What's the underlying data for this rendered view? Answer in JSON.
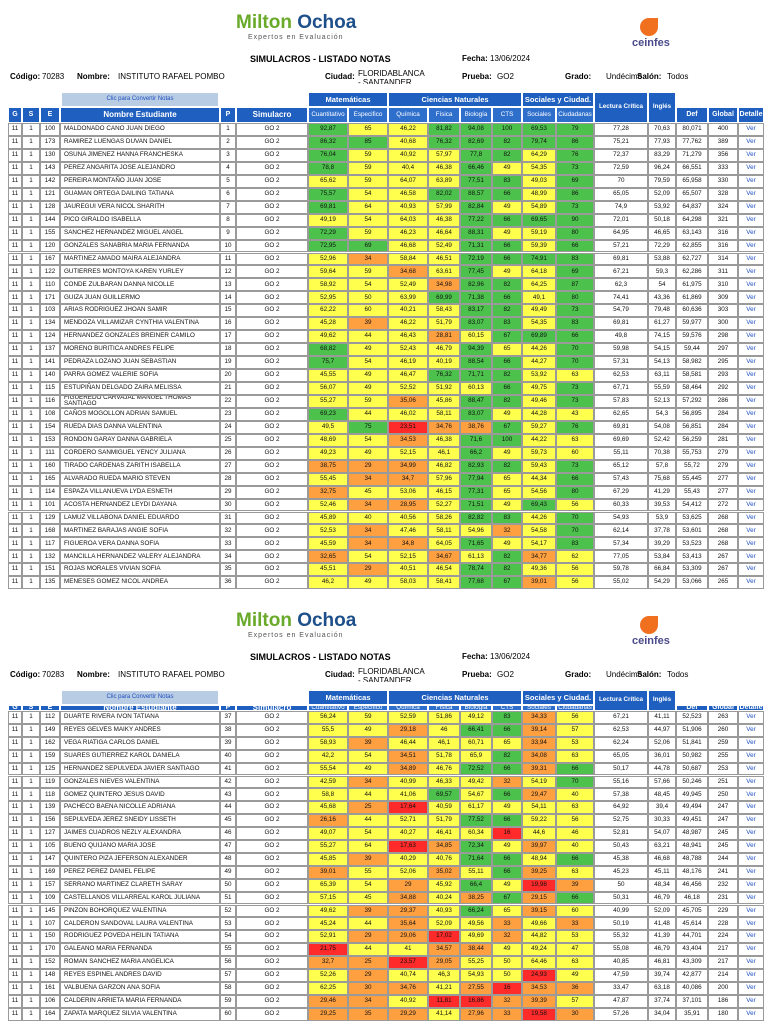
{
  "logo_left": "Milton",
  "logo_right": "Ochoa",
  "logo_tagline": "Expertos en Evaluación",
  "partner_logo": "ceinfes",
  "title": "SIMULACROS - LISTADO NOTAS",
  "info": {
    "fecha_label": "Fecha:",
    "fecha": "13/06/2024",
    "codigo_label": "Código:",
    "codigo": "70283",
    "nombre_label": "Nombre:",
    "nombre": "INSTITUTO RAFAEL POMBO",
    "ciudad_label": "Ciudad:",
    "ciudad": "FLORIDABLANCA - SANTANDER",
    "prueba_label": "Prueba:",
    "prueba": "GO2",
    "grado_label": "Grado:",
    "grado": "Undécimo",
    "salon_label": "Salón:",
    "salon": "Todos"
  },
  "convert_button": "Clic para Convertir Notas",
  "groups": [
    "Matemáticas",
    "Ciencias Naturales",
    "Sociales y Ciudad."
  ],
  "columns": [
    "G",
    "S",
    "E",
    "Nombre Estudiante",
    "P",
    "Simulacro",
    "Cuantitativo",
    "Especifico",
    "Química",
    "Física",
    "Biología",
    "CTS",
    "Sociales",
    "Ciudadanas",
    "Lectura Crítica",
    "Inglés",
    "Def",
    "Global",
    "Detalle"
  ],
  "detail_link": "Ver",
  "rows": [
    [
      "11",
      "1",
      "100",
      "MALDONADO CANO JUAN DIEGO",
      "1",
      "GO 2",
      "92,87",
      "65",
      "46,22",
      "81,82",
      "94,08",
      "100",
      "69,53",
      "79",
      "77,28",
      "70,63",
      "80,071",
      "400"
    ],
    [
      "11",
      "1",
      "173",
      "RAMIREZ LUENGAS DUVAN DANIEL",
      "2",
      "GO 2",
      "86,32",
      "85",
      "40,68",
      "76,32",
      "82,69",
      "82",
      "79,74",
      "86",
      "75,21",
      "77,93",
      "77,762",
      "389"
    ],
    [
      "11",
      "1",
      "130",
      "OSUNA JIMENEZ HANNA FRANCHESKA",
      "3",
      "GO 2",
      "76,04",
      "59",
      "40,92",
      "57,97",
      "77,8",
      "82",
      "64,29",
      "76",
      "72,37",
      "83,29",
      "71,279",
      "356"
    ],
    [
      "11",
      "1",
      "143",
      "PEREZ ANGARITA JOSE ALEJANDRO",
      "4",
      "GO 2",
      "78,8",
      "59",
      "40,4",
      "46,38",
      "66,46",
      "49",
      "54,35",
      "73",
      "72,59",
      "96,24",
      "66,551",
      "333"
    ],
    [
      "11",
      "1",
      "142",
      "PEREIRA MONTAÑO JUAN JOSE",
      "5",
      "GO 2",
      "65,62",
      "59",
      "64,07",
      "63,89",
      "77,51",
      "83",
      "49,03",
      "69",
      "70",
      "79,59",
      "65,958",
      "330"
    ],
    [
      "11",
      "1",
      "121",
      "GUAMAN ORTEGA DAILING TATIANA",
      "6",
      "GO 2",
      "75,57",
      "54",
      "46,58",
      "82,02",
      "88,57",
      "66",
      "48,99",
      "86",
      "65,05",
      "52,09",
      "65,507",
      "328"
    ],
    [
      "11",
      "1",
      "128",
      "JAUREGUI VERA NICOL SHARITH",
      "7",
      "GO 2",
      "69,81",
      "64",
      "40,93",
      "57,99",
      "82,84",
      "49",
      "54,89",
      "73",
      "74,9",
      "53,92",
      "64,837",
      "324"
    ],
    [
      "11",
      "1",
      "144",
      "PICO GIRALDO ISABELLA",
      "8",
      "GO 2",
      "49,19",
      "54",
      "64,03",
      "46,38",
      "77,22",
      "66",
      "69,65",
      "90",
      "72,01",
      "50,18",
      "64,298",
      "321"
    ],
    [
      "11",
      "1",
      "155",
      "SANCHEZ HERNANDEZ MIGUEL ANGEL",
      "9",
      "GO 2",
      "72,29",
      "59",
      "46,23",
      "46,64",
      "88,31",
      "49",
      "59,19",
      "80",
      "64,95",
      "46,65",
      "63,143",
      "316"
    ],
    [
      "11",
      "1",
      "120",
      "GONZALES SANABRIA MARIA FERNANDA",
      "10",
      "GO 2",
      "72,95",
      "69",
      "46,68",
      "52,49",
      "71,31",
      "66",
      "59,39",
      "66",
      "57,21",
      "72,29",
      "62,855",
      "316"
    ],
    [
      "11",
      "1",
      "167",
      "MARTINEZ AMADO MAIRA ALEJANDRA",
      "11",
      "GO 2",
      "52,96",
      "34",
      "58,84",
      "46,51",
      "72,19",
      "66",
      "74,91",
      "83",
      "69,81",
      "53,88",
      "62,727",
      "314"
    ],
    [
      "11",
      "1",
      "122",
      "GUTIERRES MONTOYA KAREN YURLEY",
      "12",
      "GO 2",
      "59,64",
      "59",
      "34,68",
      "63,61",
      "77,45",
      "49",
      "64,18",
      "69",
      "67,21",
      "59,3",
      "62,286",
      "311"
    ],
    [
      "11",
      "1",
      "110",
      "CONDE ZULBARAN DANNA NICOLLE",
      "13",
      "GO 2",
      "58,92",
      "54",
      "52,49",
      "34,98",
      "82,96",
      "82",
      "64,25",
      "87",
      "62,3",
      "54",
      "61,975",
      "310"
    ],
    [
      "11",
      "1",
      "171",
      "GUIZA JUAN GUILLERMO",
      "14",
      "GO 2",
      "52,95",
      "50",
      "63,99",
      "69,99",
      "71,38",
      "66",
      "49,1",
      "80",
      "74,41",
      "43,36",
      "61,869",
      "309"
    ],
    [
      "11",
      "1",
      "103",
      "ARIAS RODRIGUEZ JHOAN SAMIR",
      "15",
      "GO 2",
      "62,22",
      "60",
      "40,21",
      "58,43",
      "83,17",
      "82",
      "49,49",
      "73",
      "54,79",
      "79,48",
      "60,636",
      "303"
    ],
    [
      "11",
      "1",
      "134",
      "MENDOZA VILLAMIZAR CYNTHIA VALENTINA",
      "16",
      "GO 2",
      "45,28",
      "39",
      "46,22",
      "51,79",
      "83,07",
      "83",
      "54,35",
      "83",
      "69,81",
      "61,27",
      "59,977",
      "300"
    ],
    [
      "11",
      "1",
      "124",
      "HERNANDEZ GONZALES BREINER CAMILO",
      "17",
      "GO 2",
      "49,62",
      "44",
      "46,43",
      "28,81",
      "60,15",
      "67",
      "69,89",
      "66",
      "49,8",
      "74,15",
      "59,576",
      "298"
    ],
    [
      "11",
      "1",
      "137",
      "MORENO BURITICA ANDRES FELIPE",
      "18",
      "GO 2",
      "68,82",
      "49",
      "52,43",
      "46,79",
      "94,39",
      "65",
      "44,26",
      "70",
      "59,98",
      "54,15",
      "59,44",
      "297"
    ],
    [
      "11",
      "1",
      "141",
      "PEDRAZA LOZANO JUAN SEBASTIAN",
      "19",
      "GO 2",
      "75,7",
      "54",
      "46,19",
      "40,19",
      "88,54",
      "66",
      "44,27",
      "70",
      "57,31",
      "54,13",
      "58,982",
      "295"
    ],
    [
      "11",
      "1",
      "140",
      "PARRA GOMEZ VALERIE SOFIA",
      "20",
      "GO 2",
      "45,55",
      "49",
      "46,47",
      "76,32",
      "71,71",
      "82",
      "53,92",
      "63",
      "62,53",
      "63,11",
      "58,581",
      "293"
    ],
    [
      "11",
      "1",
      "115",
      "ESTUPIÑAN DELGADO ZAIRA MELISSA",
      "21",
      "GO 2",
      "56,07",
      "49",
      "52,52",
      "51,92",
      "60,13",
      "66",
      "49,75",
      "73",
      "67,71",
      "55,59",
      "58,464",
      "292"
    ],
    [
      "11",
      "1",
      "116",
      "FIGUEREDO CARVAJAL MANUEL THOMAS SANTIAGO",
      "22",
      "GO 2",
      "55,27",
      "59",
      "35,06",
      "45,86",
      "88,47",
      "82",
      "49,46",
      "73",
      "57,83",
      "52,13",
      "57,292",
      "286"
    ],
    [
      "11",
      "1",
      "108",
      "CAÑOS MOGOLLON ADRIAN SAMUEL",
      "23",
      "GO 2",
      "69,23",
      "44",
      "46,02",
      "58,11",
      "83,07",
      "49",
      "44,28",
      "43",
      "62,65",
      "54,3",
      "56,895",
      "284"
    ],
    [
      "11",
      "1",
      "154",
      "RUEDA DIAS DANNA VALENTINA",
      "24",
      "GO 2",
      "49,5",
      "75",
      "23,51",
      "34,76",
      "38,76",
      "67",
      "59,27",
      "76",
      "69,81",
      "54,08",
      "56,851",
      "284"
    ],
    [
      "11",
      "1",
      "153",
      "RONDON GARAY DANNA GABRIELA",
      "25",
      "GO 2",
      "48,69",
      "54",
      "34,53",
      "46,38",
      "71,6",
      "100",
      "44,22",
      "63",
      "69,69",
      "52,42",
      "56,259",
      "281"
    ],
    [
      "11",
      "1",
      "111",
      "CORDERO SANMIGUEL YENCY JULIANA",
      "26",
      "GO 2",
      "49,23",
      "49",
      "52,15",
      "46,1",
      "66,2",
      "49",
      "59,73",
      "60",
      "55,11",
      "70,38",
      "55,753",
      "279"
    ],
    [
      "11",
      "1",
      "160",
      "TIRADO CARDENAS ZARITH ISABELLA",
      "27",
      "GO 2",
      "38,75",
      "29",
      "34,99",
      "46,82",
      "82,93",
      "82",
      "59,43",
      "73",
      "65,12",
      "57,8",
      "55,72",
      "279"
    ],
    [
      "11",
      "1",
      "165",
      "ALVARADO RUEDA MARIO STEVEN",
      "28",
      "GO 2",
      "55,45",
      "34",
      "34,7",
      "57,96",
      "77,94",
      "65",
      "44,34",
      "66",
      "57,43",
      "75,68",
      "55,445",
      "277"
    ],
    [
      "11",
      "1",
      "114",
      "ESPAZA VILLANUEVA LYDA ESNETH",
      "29",
      "GO 2",
      "32,75",
      "45",
      "53,06",
      "46,15",
      "77,31",
      "65",
      "54,56",
      "80",
      "67,29",
      "41,29",
      "55,43",
      "277"
    ],
    [
      "11",
      "1",
      "101",
      "ACOSTA HERNANDEZ LEYDI DAYANA",
      "30",
      "GO 2",
      "52,46",
      "34",
      "28,95",
      "52,27",
      "71,51",
      "49",
      "69,43",
      "56",
      "60,33",
      "39,53",
      "54,412",
      "272"
    ],
    [
      "11",
      "1",
      "129",
      "LAMUZ VILLABONA DANIEL EDUARDO",
      "31",
      "GO 2",
      "45,89",
      "40",
      "40,56",
      "58,26",
      "82,82",
      "83",
      "44,26",
      "70",
      "54,93",
      "53,9",
      "53,625",
      "268"
    ],
    [
      "11",
      "1",
      "168",
      "MARTINEZ BARAJAS ANGIE SOFIA",
      "32",
      "GO 2",
      "52,53",
      "34",
      "47,46",
      "58,11",
      "54,96",
      "32",
      "54,58",
      "70",
      "62,14",
      "37,78",
      "53,601",
      "268"
    ],
    [
      "11",
      "1",
      "117",
      "FIGUEROA VERA DANNA SOFIA",
      "33",
      "GO 2",
      "45,59",
      "34",
      "34,8",
      "64,05",
      "71,65",
      "49",
      "54,17",
      "83",
      "57,34",
      "39,29",
      "53,523",
      "268"
    ],
    [
      "11",
      "1",
      "132",
      "MANCILLA HERNANDEZ VALERY ALEJANDRA",
      "34",
      "GO 2",
      "32,65",
      "54",
      "52,15",
      "34,67",
      "61,13",
      "82",
      "34,77",
      "62",
      "77,05",
      "53,84",
      "53,413",
      "267"
    ],
    [
      "11",
      "1",
      "151",
      "ROJAS MORALES VIVIAN SOFIA",
      "35",
      "GO 2",
      "45,51",
      "29",
      "40,51",
      "46,54",
      "78,74",
      "82",
      "49,36",
      "56",
      "59,78",
      "66,84",
      "53,309",
      "267"
    ],
    [
      "11",
      "1",
      "135",
      "MENESES GOMEZ NICOL ANDREA",
      "36",
      "GO 2",
      "46,2",
      "49",
      "58,03",
      "58,41",
      "77,68",
      "67",
      "39,01",
      "56",
      "55,02",
      "54,29",
      "53,066",
      "265"
    ],
    [
      "11",
      "1",
      "112",
      "DUARTE RIVERA IVON TATIANA",
      "37",
      "GO 2",
      "56,24",
      "59",
      "52,59",
      "51,86",
      "49,12",
      "83",
      "34,33",
      "56",
      "67,21",
      "41,11",
      "52,523",
      "263"
    ],
    [
      "11",
      "1",
      "149",
      "REYES GELVES MAIKY ANDRES",
      "38",
      "GO 2",
      "55,5",
      "49",
      "29,18",
      "46",
      "66,41",
      "66",
      "39,14",
      "57",
      "62,53",
      "44,97",
      "51,906",
      "260"
    ],
    [
      "11",
      "1",
      "162",
      "VEGA RIATIGA CARLOS DANIEL",
      "39",
      "GO 2",
      "58,93",
      "39",
      "46,44",
      "46,1",
      "60,71",
      "65",
      "33,94",
      "53",
      "62,24",
      "52,06",
      "51,841",
      "259"
    ],
    [
      "11",
      "1",
      "159",
      "SUARES GUTIERREZ KAROL DANIELA",
      "40",
      "GO 2",
      "42,2",
      "54",
      "34,51",
      "51,78",
      "65,9",
      "82",
      "34,08",
      "63",
      "65,05",
      "36,01",
      "50,982",
      "255"
    ],
    [
      "11",
      "1",
      "125",
      "HERNANDEZ SEPULVEDA JAVIER SANTIAGO",
      "41",
      "GO 2",
      "55,54",
      "49",
      "34,89",
      "46,76",
      "72,52",
      "66",
      "39,31",
      "66",
      "50,17",
      "44,78",
      "50,687",
      "253"
    ],
    [
      "11",
      "1",
      "119",
      "GONZALES NIEVES VALENTINA",
      "42",
      "GO 2",
      "42,59",
      "34",
      "40,99",
      "46,33",
      "49,42",
      "32",
      "54,19",
      "70",
      "55,16",
      "57,66",
      "50,246",
      "251"
    ],
    [
      "11",
      "1",
      "118",
      "GOMEZ QUINTERO JESUS DAVID",
      "43",
      "GO 2",
      "58,8",
      "44",
      "41,06",
      "69,57",
      "54,67",
      "66",
      "29,47",
      "40",
      "57,38",
      "48,45",
      "49,945",
      "250"
    ],
    [
      "11",
      "1",
      "139",
      "PACHECO BAENA NICOLLE ADRIANA",
      "44",
      "GO 2",
      "45,68",
      "25",
      "17,64",
      "40,59",
      "61,17",
      "49",
      "54,11",
      "63",
      "64,92",
      "39,4",
      "49,494",
      "247"
    ],
    [
      "11",
      "1",
      "156",
      "SEPULVEDA JEREZ SNEIDY LISSETH",
      "45",
      "GO 2",
      "26,16",
      "44",
      "52,71",
      "51,79",
      "77,52",
      "66",
      "59,22",
      "56",
      "52,75",
      "30,33",
      "49,451",
      "247"
    ],
    [
      "11",
      "1",
      "127",
      "JAIMES CUADROS NEZLY ALEXANDRA",
      "46",
      "GO 2",
      "49,07",
      "54",
      "40,27",
      "46,41",
      "60,34",
      "16",
      "44,6",
      "46",
      "52,81",
      "54,07",
      "48,987",
      "245"
    ],
    [
      "11",
      "1",
      "105",
      "BUENO QUIJANO MARIA JOSE",
      "47",
      "GO 2",
      "55,27",
      "64",
      "17,63",
      "34,85",
      "72,34",
      "49",
      "39,97",
      "40",
      "50,43",
      "63,21",
      "48,941",
      "245"
    ],
    [
      "11",
      "1",
      "147",
      "QUINTERO PIZA JEFERSON ALEXANDER",
      "48",
      "GO 2",
      "45,85",
      "39",
      "40,29",
      "40,76",
      "71,64",
      "66",
      "48,94",
      "66",
      "45,38",
      "46,68",
      "48,788",
      "244"
    ],
    [
      "11",
      "1",
      "169",
      "PEREZ PEREZ DANIEL FELIPE",
      "49",
      "GO 2",
      "39,01",
      "55",
      "52,06",
      "35,02",
      "55,11",
      "66",
      "39,25",
      "63",
      "45,23",
      "45,11",
      "48,176",
      "241"
    ],
    [
      "11",
      "1",
      "157",
      "SERRANO MARTINEZ CLARETH SARAY",
      "50",
      "GO 2",
      "65,39",
      "54",
      "29",
      "45,92",
      "66,4",
      "49",
      "19,98",
      "39",
      "50",
      "48,34",
      "46,456",
      "232"
    ],
    [
      "11",
      "1",
      "109",
      "CASTELLANOS VILLARREAL KAROL JULIANA",
      "51",
      "GO 2",
      "57,15",
      "45",
      "34,88",
      "40,24",
      "38,25",
      "67",
      "29,15",
      "66",
      "50,31",
      "46,79",
      "46,18",
      "231"
    ],
    [
      "11",
      "1",
      "145",
      "PINZON BOHORQUEZ VALENTINA",
      "52",
      "GO 2",
      "49,62",
      "39",
      "29,37",
      "40,93",
      "66,24",
      "65",
      "39,15",
      "60",
      "40,99",
      "52,09",
      "45,705",
      "229"
    ],
    [
      "11",
      "1",
      "107",
      "CALDERON SANDOVAL LAURA VALENTINA",
      "53",
      "GO 2",
      "45,24",
      "44",
      "35,64",
      "52,09",
      "49,56",
      "33",
      "49,66",
      "33",
      "50,19",
      "41,48",
      "45,614",
      "228"
    ],
    [
      "11",
      "1",
      "150",
      "RODRIGUEZ POVEDA HEILIN TATIANA",
      "54",
      "GO 2",
      "52,91",
      "29",
      "29,06",
      "17,02",
      "49,69",
      "32",
      "44,82",
      "53",
      "55,32",
      "41,39",
      "44,701",
      "224"
    ],
    [
      "11",
      "1",
      "170",
      "GALEANO MARIA FERNANDA",
      "55",
      "GO 2",
      "21,75",
      "44",
      "41",
      "34,57",
      "38,44",
      "49",
      "49,24",
      "47",
      "55,08",
      "46,79",
      "43,404",
      "217"
    ],
    [
      "11",
      "1",
      "152",
      "ROMAN SANCHEZ MARIA ANGELICA",
      "56",
      "GO 2",
      "32,7",
      "25",
      "23,57",
      "29,05",
      "55,25",
      "50",
      "64,46",
      "63",
      "40,85",
      "46,81",
      "43,309",
      "217"
    ],
    [
      "11",
      "1",
      "148",
      "REYES ESPINEL ANDRES DAVID",
      "57",
      "GO 2",
      "52,26",
      "29",
      "40,74",
      "46,3",
      "54,93",
      "50",
      "24,93",
      "49",
      "47,59",
      "39,74",
      "42,877",
      "214"
    ],
    [
      "11",
      "1",
      "161",
      "VALBUENA GARZON ANA SOFIA",
      "58",
      "GO 2",
      "62,25",
      "30",
      "34,76",
      "41,21",
      "27,55",
      "16",
      "34,53",
      "36",
      "33,47",
      "63,18",
      "40,086",
      "200"
    ],
    [
      "11",
      "1",
      "106",
      "CALDERIN ARRIETA MARIA FERNANDA",
      "59",
      "GO 2",
      "29,46",
      "34",
      "40,92",
      "11,81",
      "16,86",
      "32",
      "39,39",
      "57",
      "47,87",
      "37,74",
      "37,101",
      "186"
    ],
    [
      "11",
      "1",
      "164",
      "ZAPATA MARQUEZ SILVIA VALENTINA",
      "60",
      "GO 2",
      "29,25",
      "35",
      "29,29",
      "41,14",
      "27,96",
      "33",
      "19,58",
      "30",
      "57,26",
      "34,04",
      "35,91",
      "180"
    ]
  ]
}
